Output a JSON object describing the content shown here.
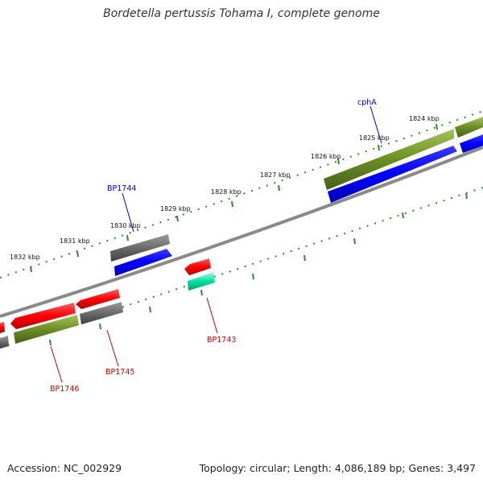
{
  "title": "Bordetella pertussis Tohama I, complete genome",
  "footer": {
    "accession": "Accession: NC_002929",
    "topology": "Topology: circular; Length: 4,086,189 bp; Genes: 3,497"
  },
  "tick_labels": [
    "1824 kbp",
    "1825 kbp",
    "1826 kbp",
    "1827 kbp",
    "1828 kbp",
    "1829 kbp",
    "1830 kbp",
    "1831 kbp",
    "1832 kbp"
  ],
  "gene_labels": {
    "cphA": "cphA",
    "BP1744": "BP1744",
    "BP1743": "BP1743",
    "BP1745": "BP1745",
    "BP1746": "BP1746"
  },
  "colors": {
    "backbone": "#8a8a8a",
    "forward_cds": "#0000ff",
    "reverse_cds": "#ff0000",
    "gene_grey": "#6b6b6b",
    "gene_olive": "#6b8e23",
    "gene_teal": "#00e0a0",
    "tick_green": "#2e8b2e",
    "label_blue": "#0000cc",
    "label_red": "#cc0000"
  },
  "feature_icons": [
    "gene-arrow",
    "tick-mark",
    "label-leader-line"
  ]
}
